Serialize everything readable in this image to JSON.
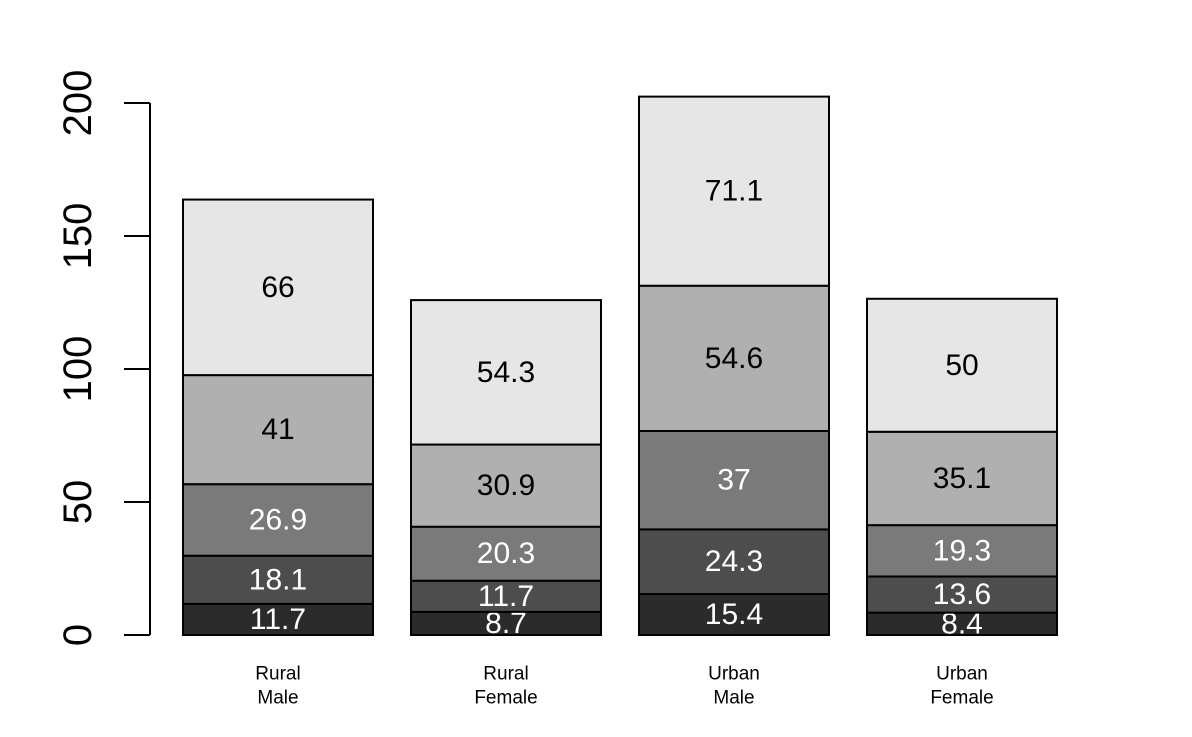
{
  "chart_data": {
    "type": "bar",
    "stacked": true,
    "categories": [
      [
        "Rural",
        "Male"
      ],
      [
        "Rural",
        "Female"
      ],
      [
        "Urban",
        "Male"
      ],
      [
        "Urban",
        "Female"
      ]
    ],
    "series": [
      {
        "values": [
          11.7,
          8.7,
          15.4,
          8.4
        ],
        "labels": [
          "11.7",
          "8.7",
          "15.4",
          "8.4"
        ],
        "color": "#2b2b2b",
        "label_color": "#ffffff"
      },
      {
        "values": [
          18.1,
          11.7,
          24.3,
          13.6
        ],
        "labels": [
          "18.1",
          "11.7",
          "24.3",
          "13.6"
        ],
        "color": "#4d4d4d",
        "label_color": "#ffffff"
      },
      {
        "values": [
          26.9,
          20.3,
          37,
          19.3
        ],
        "labels": [
          "26.9",
          "20.3",
          "37",
          "19.3"
        ],
        "color": "#7a7a7a",
        "label_color": "#ffffff"
      },
      {
        "values": [
          41,
          30.9,
          54.6,
          35.1
        ],
        "labels": [
          "41",
          "30.9",
          "54.6",
          "35.1"
        ],
        "color": "#b0b0b0",
        "label_color": "#000000"
      },
      {
        "values": [
          66,
          54.3,
          71.1,
          50
        ],
        "labels": [
          "66",
          "54.3",
          "71.1",
          "50"
        ],
        "color": "#e6e6e6",
        "label_color": "#000000"
      }
    ],
    "yticks": [
      "0",
      "50",
      "100",
      "150",
      "200"
    ],
    "ylim": [
      0,
      200
    ],
    "title": "",
    "xlabel": "",
    "ylabel": "",
    "grid": false,
    "legend": "none"
  }
}
